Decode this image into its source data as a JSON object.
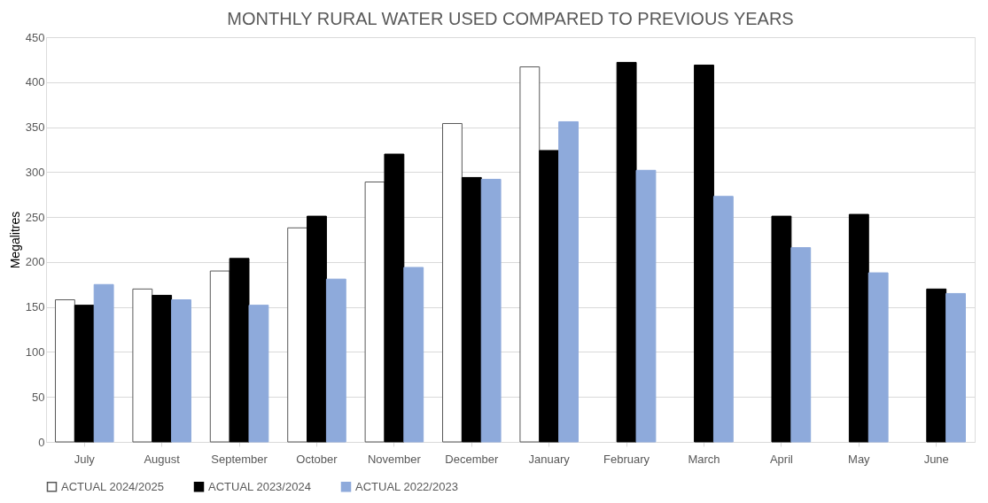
{
  "chart_data": {
    "type": "bar",
    "title": "MONTHLY RURAL WATER USED COMPARED TO PREVIOUS YEARS",
    "ylabel": "Megalitres",
    "categories": [
      "July",
      "August",
      "September",
      "October",
      "November",
      "December",
      "January",
      "February",
      "March",
      "April",
      "May",
      "June"
    ],
    "series": [
      {
        "name": "ACTUAL 2024/2025",
        "color": "#ffffff",
        "values": [
          158,
          170,
          190,
          238,
          289,
          354,
          417,
          null,
          null,
          null,
          null,
          null
        ]
      },
      {
        "name": "ACTUAL 2023/2024",
        "color": "#000000",
        "values": [
          152,
          163,
          204,
          251,
          320,
          294,
          324,
          422,
          419,
          251,
          253,
          170
        ]
      },
      {
        "name": "ACTUAL 2022/2023",
        "color": "#8eaadb",
        "values": [
          175,
          158,
          152,
          181,
          194,
          292,
          356,
          302,
          273,
          216,
          188,
          165
        ]
      }
    ],
    "ylim": [
      0,
      450
    ],
    "yticks": [
      0,
      50,
      100,
      150,
      200,
      250,
      300,
      350,
      400,
      450
    ],
    "grid": "y",
    "legend": "bottom"
  }
}
